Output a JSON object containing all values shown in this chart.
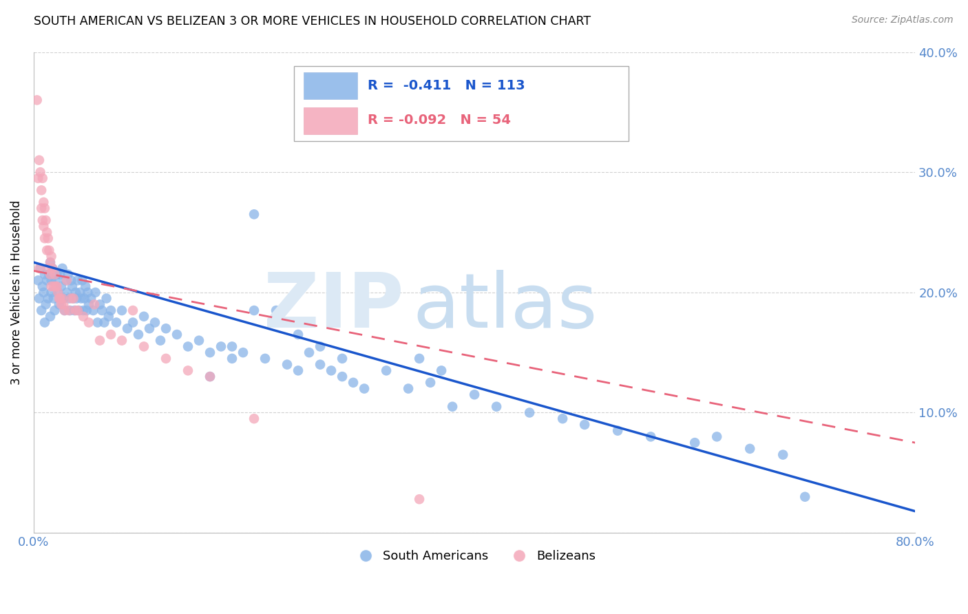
{
  "title": "SOUTH AMERICAN VS BELIZEAN 3 OR MORE VEHICLES IN HOUSEHOLD CORRELATION CHART",
  "source": "Source: ZipAtlas.com",
  "ylabel": "3 or more Vehicles in Household",
  "xlim": [
    0.0,
    0.8
  ],
  "ylim": [
    0.0,
    0.4
  ],
  "xticks": [
    0.0,
    0.1,
    0.2,
    0.3,
    0.4,
    0.5,
    0.6,
    0.7,
    0.8
  ],
  "yticks": [
    0.0,
    0.1,
    0.2,
    0.3,
    0.4
  ],
  "blue_color": "#89b4e8",
  "pink_color": "#f4a7b9",
  "blue_line_color": "#1a56cc",
  "pink_line_color": "#e8637a",
  "axis_tick_color": "#5588cc",
  "grid_color": "#cccccc",
  "watermark_zip_color": "#dce9f5",
  "watermark_atlas_color": "#c8ddf0",
  "legend_label_blue": "South Americans",
  "legend_label_pink": "Belizeans",
  "blue_R": -0.411,
  "blue_N": 113,
  "pink_R": -0.092,
  "pink_N": 54,
  "blue_line_x0": 0.0,
  "blue_line_y0": 0.225,
  "blue_line_x1": 0.8,
  "blue_line_y1": 0.018,
  "pink_line_x0": 0.0,
  "pink_line_y0": 0.218,
  "pink_line_x1": 0.8,
  "pink_line_y1": 0.075,
  "blue_scatter_x": [
    0.004,
    0.005,
    0.006,
    0.007,
    0.008,
    0.009,
    0.01,
    0.01,
    0.011,
    0.012,
    0.013,
    0.014,
    0.015,
    0.015,
    0.016,
    0.016,
    0.017,
    0.018,
    0.019,
    0.02,
    0.021,
    0.022,
    0.023,
    0.024,
    0.025,
    0.026,
    0.027,
    0.028,
    0.029,
    0.03,
    0.031,
    0.032,
    0.033,
    0.034,
    0.035,
    0.036,
    0.037,
    0.038,
    0.039,
    0.04,
    0.041,
    0.042,
    0.043,
    0.044,
    0.045,
    0.046,
    0.047,
    0.048,
    0.049,
    0.05,
    0.052,
    0.054,
    0.056,
    0.058,
    0.06,
    0.062,
    0.064,
    0.066,
    0.068,
    0.07,
    0.075,
    0.08,
    0.085,
    0.09,
    0.095,
    0.1,
    0.105,
    0.11,
    0.115,
    0.12,
    0.13,
    0.14,
    0.15,
    0.16,
    0.17,
    0.18,
    0.19,
    0.2,
    0.21,
    0.22,
    0.23,
    0.24,
    0.25,
    0.26,
    0.27,
    0.28,
    0.29,
    0.3,
    0.32,
    0.34,
    0.36,
    0.38,
    0.4,
    0.42,
    0.45,
    0.48,
    0.5,
    0.53,
    0.56,
    0.6,
    0.62,
    0.65,
    0.68,
    0.7,
    0.35,
    0.37,
    0.28,
    0.26,
    0.24,
    0.22,
    0.2,
    0.18,
    0.16
  ],
  "blue_scatter_y": [
    0.21,
    0.195,
    0.22,
    0.185,
    0.205,
    0.2,
    0.215,
    0.175,
    0.19,
    0.21,
    0.195,
    0.215,
    0.18,
    0.225,
    0.2,
    0.21,
    0.22,
    0.195,
    0.185,
    0.21,
    0.215,
    0.2,
    0.19,
    0.215,
    0.205,
    0.22,
    0.195,
    0.185,
    0.21,
    0.2,
    0.215,
    0.195,
    0.185,
    0.21,
    0.205,
    0.195,
    0.185,
    0.2,
    0.195,
    0.21,
    0.185,
    0.2,
    0.195,
    0.21,
    0.185,
    0.195,
    0.205,
    0.185,
    0.2,
    0.19,
    0.195,
    0.185,
    0.2,
    0.175,
    0.19,
    0.185,
    0.175,
    0.195,
    0.18,
    0.185,
    0.175,
    0.185,
    0.17,
    0.175,
    0.165,
    0.18,
    0.17,
    0.175,
    0.16,
    0.17,
    0.165,
    0.155,
    0.16,
    0.15,
    0.155,
    0.145,
    0.15,
    0.265,
    0.145,
    0.185,
    0.14,
    0.135,
    0.15,
    0.14,
    0.135,
    0.13,
    0.125,
    0.12,
    0.135,
    0.12,
    0.125,
    0.105,
    0.115,
    0.105,
    0.1,
    0.095,
    0.09,
    0.085,
    0.08,
    0.075,
    0.08,
    0.07,
    0.065,
    0.03,
    0.145,
    0.135,
    0.145,
    0.155,
    0.165,
    0.175,
    0.185,
    0.155,
    0.13
  ],
  "pink_scatter_x": [
    0.003,
    0.004,
    0.005,
    0.005,
    0.006,
    0.007,
    0.007,
    0.008,
    0.008,
    0.009,
    0.009,
    0.01,
    0.01,
    0.011,
    0.012,
    0.012,
    0.013,
    0.013,
    0.014,
    0.015,
    0.015,
    0.016,
    0.016,
    0.017,
    0.018,
    0.019,
    0.02,
    0.021,
    0.022,
    0.023,
    0.024,
    0.025,
    0.026,
    0.027,
    0.028,
    0.03,
    0.032,
    0.034,
    0.036,
    0.038,
    0.04,
    0.045,
    0.05,
    0.055,
    0.06,
    0.07,
    0.08,
    0.09,
    0.1,
    0.12,
    0.14,
    0.16,
    0.2,
    0.35
  ],
  "pink_scatter_y": [
    0.36,
    0.295,
    0.31,
    0.22,
    0.3,
    0.285,
    0.27,
    0.26,
    0.295,
    0.275,
    0.255,
    0.27,
    0.245,
    0.26,
    0.25,
    0.235,
    0.245,
    0.22,
    0.235,
    0.225,
    0.215,
    0.23,
    0.205,
    0.22,
    0.205,
    0.215,
    0.205,
    0.205,
    0.2,
    0.195,
    0.195,
    0.19,
    0.195,
    0.19,
    0.185,
    0.21,
    0.185,
    0.195,
    0.195,
    0.185,
    0.185,
    0.18,
    0.175,
    0.19,
    0.16,
    0.165,
    0.16,
    0.185,
    0.155,
    0.145,
    0.135,
    0.13,
    0.095,
    0.028
  ]
}
